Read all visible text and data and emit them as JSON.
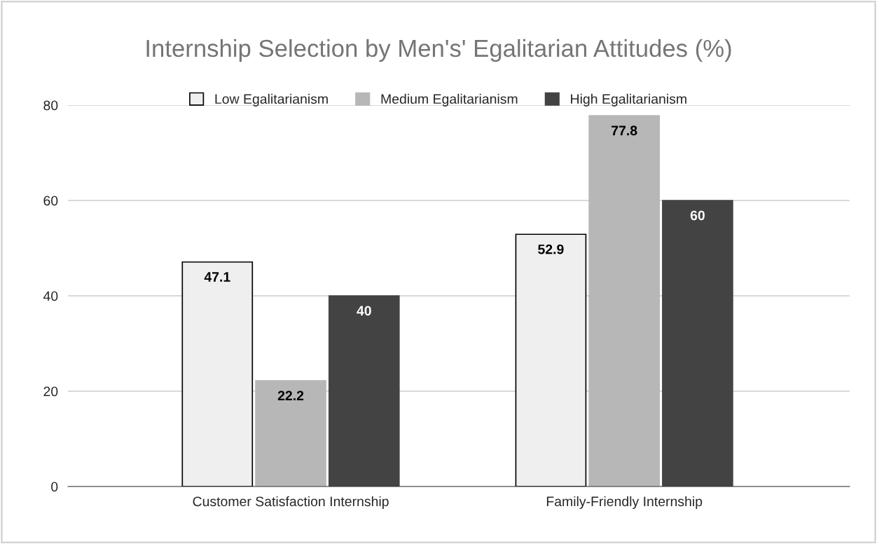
{
  "chart_data": {
    "type": "bar",
    "title": "Internship Selection by Men's' Egalitarian Attitudes (%)",
    "categories": [
      "Customer Satisfaction Internship",
      "Family-Friendly Internship"
    ],
    "series": [
      {
        "name": "Low Egalitarianism",
        "color": "#efefef",
        "values": [
          47.1,
          52.9
        ]
      },
      {
        "name": "Medium Egalitarianism",
        "color": "#b7b7b7",
        "values": [
          22.2,
          77.8
        ]
      },
      {
        "name": "High Egalitarianism",
        "color": "#434343",
        "values": [
          40,
          60
        ]
      }
    ],
    "ylim": [
      0,
      80
    ],
    "yticks": [
      0,
      20,
      40,
      60,
      80
    ],
    "grid": "y",
    "legend": "top",
    "data_labels": true
  }
}
